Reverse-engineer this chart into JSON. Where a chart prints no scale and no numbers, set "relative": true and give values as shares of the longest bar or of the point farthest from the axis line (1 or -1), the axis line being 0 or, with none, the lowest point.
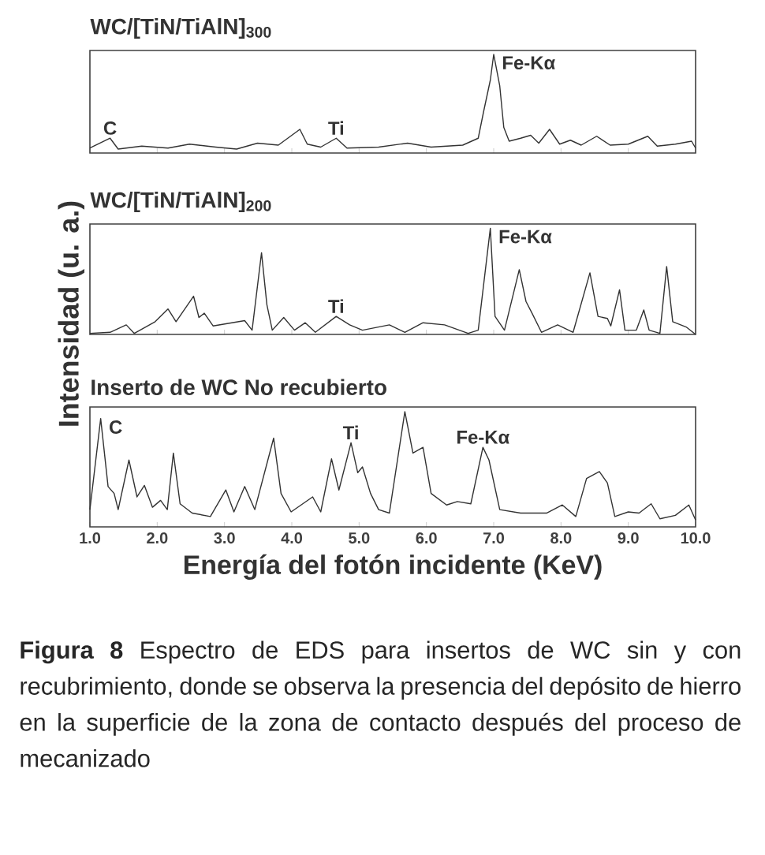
{
  "chart_data": [
    {
      "type": "line",
      "title": "WC/[TiN/TiAlN]$_{300}$",
      "relative": true,
      "tick_labels": false,
      "xlim": [
        1,
        10
      ],
      "xticks": [
        {
          "value": 1,
          "label": null
        },
        {
          "value": 2,
          "label": null
        },
        {
          "value": 3,
          "label": null
        },
        {
          "value": 4,
          "label": null
        },
        {
          "value": 5,
          "label": null
        },
        {
          "value": 6,
          "label": null
        },
        {
          "value": 7,
          "label": null
        },
        {
          "value": 8,
          "label": null
        },
        {
          "value": 9,
          "label": null
        },
        {
          "value": 10,
          "label": null
        }
      ],
      "x": [
        1.0,
        1.3,
        1.42,
        1.77,
        2.16,
        2.48,
        2.87,
        3.18,
        3.49,
        3.8,
        4.12,
        4.23,
        4.43,
        4.66,
        4.82,
        5.29,
        5.72,
        6.07,
        6.54,
        6.77,
        6.85,
        6.95,
        7.0,
        7.09,
        7.15,
        7.23,
        7.4,
        7.55,
        7.67,
        7.83,
        7.98,
        8.14,
        8.3,
        8.53,
        8.73,
        9.0,
        9.29,
        9.43,
        9.7,
        9.94,
        10.0
      ],
      "series": [
        {
          "color": "#333333",
          "values": [
            0.05,
            0.15,
            0.04,
            0.07,
            0.05,
            0.09,
            0.06,
            0.04,
            0.1,
            0.08,
            0.24,
            0.09,
            0.06,
            0.15,
            0.05,
            0.06,
            0.1,
            0.06,
            0.08,
            0.15,
            0.42,
            0.74,
            1.0,
            0.68,
            0.26,
            0.12,
            0.15,
            0.18,
            0.1,
            0.24,
            0.09,
            0.13,
            0.08,
            0.17,
            0.08,
            0.09,
            0.17,
            0.07,
            0.09,
            0.12,
            0.05
          ]
        }
      ],
      "annotations": [
        {
          "text": "C",
          "x": 1.3,
          "y": 0.15
        },
        {
          "text": "Ti",
          "x": 4.66,
          "y": 0.15
        },
        {
          "text": "Fe-Kα",
          "x": 7.0,
          "y": 1.0
        }
      ]
    },
    {
      "type": "line",
      "title": "WC/[TiN/TiAlN]$_{200}$",
      "ylabel": "Intensidad (u. a.)",
      "relative": true,
      "tick_labels": false,
      "xlim": [
        1,
        10
      ],
      "xticks": [
        {
          "value": 1,
          "label": null
        },
        {
          "value": 2,
          "label": null
        },
        {
          "value": 3,
          "label": null
        },
        {
          "value": 4,
          "label": null
        },
        {
          "value": 5,
          "label": null
        },
        {
          "value": 6,
          "label": null
        },
        {
          "value": 7,
          "label": null
        },
        {
          "value": 8,
          "label": null
        },
        {
          "value": 9,
          "label": null
        },
        {
          "value": 10,
          "label": null
        }
      ],
      "x": [
        1.0,
        1.3,
        1.54,
        1.66,
        1.97,
        2.16,
        2.28,
        2.54,
        2.62,
        2.7,
        2.83,
        3.3,
        3.41,
        3.55,
        3.63,
        3.71,
        3.88,
        4.04,
        4.2,
        4.35,
        4.66,
        4.86,
        5.05,
        5.45,
        5.68,
        5.95,
        6.27,
        6.62,
        6.77,
        6.95,
        7.02,
        7.16,
        7.38,
        7.48,
        7.57,
        7.71,
        7.95,
        8.18,
        8.43,
        8.55,
        8.69,
        8.74,
        8.87,
        8.95,
        9.12,
        9.23,
        9.31,
        9.47,
        9.57,
        9.66,
        9.86,
        10.0
      ],
      "series": [
        {
          "color": "#333333",
          "values": [
            0.01,
            0.02,
            0.09,
            0.01,
            0.12,
            0.24,
            0.12,
            0.36,
            0.16,
            0.2,
            0.08,
            0.13,
            0.04,
            0.77,
            0.28,
            0.04,
            0.16,
            0.04,
            0.11,
            0.02,
            0.17,
            0.09,
            0.04,
            0.09,
            0.02,
            0.11,
            0.09,
            0.01,
            0.04,
            1.0,
            0.17,
            0.04,
            0.61,
            0.31,
            0.2,
            0.02,
            0.09,
            0.02,
            0.58,
            0.17,
            0.15,
            0.08,
            0.42,
            0.04,
            0.04,
            0.23,
            0.04,
            0.01,
            0.64,
            0.12,
            0.07,
            0.0
          ]
        }
      ],
      "annotations": [
        {
          "text": "Ti",
          "x": 4.66,
          "y": 0.17
        },
        {
          "text": "Fe-Kα",
          "x": 6.95,
          "y": 1.0
        }
      ]
    },
    {
      "type": "line",
      "title": "Inserto de **WC** No recubierto",
      "xlabel": "Energía del fotón incidente (KeV)",
      "relative": true,
      "tick_labels": "x",
      "xlim": [
        1,
        10
      ],
      "xticks": [
        {
          "value": 1,
          "label": "1.0"
        },
        {
          "value": 2,
          "label": "2.0"
        },
        {
          "value": 3,
          "label": "3.0"
        },
        {
          "value": 4,
          "label": "4.0"
        },
        {
          "value": 5,
          "label": "5.0"
        },
        {
          "value": 6,
          "label": "6.0"
        },
        {
          "value": 7,
          "label": "7.0"
        },
        {
          "value": 8,
          "label": "8.0"
        },
        {
          "value": 9,
          "label": "9.0"
        },
        {
          "value": 10,
          "label": "10.0"
        }
      ],
      "x": [
        1.0,
        1.16,
        1.27,
        1.36,
        1.42,
        1.58,
        1.7,
        1.81,
        1.93,
        2.05,
        2.15,
        2.24,
        2.34,
        2.52,
        2.79,
        3.02,
        3.14,
        3.3,
        3.45,
        3.73,
        3.84,
        3.99,
        4.31,
        4.43,
        4.59,
        4.7,
        4.88,
        4.98,
        5.05,
        5.17,
        5.29,
        5.45,
        5.68,
        5.8,
        5.95,
        6.07,
        6.3,
        6.46,
        6.66,
        6.84,
        6.93,
        7.09,
        7.4,
        7.79,
        8.02,
        8.22,
        8.38,
        8.57,
        8.69,
        8.8,
        9.0,
        9.16,
        9.34,
        9.47,
        9.7,
        9.9,
        10.0
      ],
      "series": [
        {
          "color": "#333333",
          "values": [
            0.15,
            0.94,
            0.35,
            0.29,
            0.15,
            0.58,
            0.26,
            0.36,
            0.17,
            0.23,
            0.15,
            0.64,
            0.2,
            0.12,
            0.09,
            0.32,
            0.13,
            0.35,
            0.15,
            0.77,
            0.29,
            0.13,
            0.26,
            0.13,
            0.59,
            0.32,
            0.73,
            0.47,
            0.52,
            0.29,
            0.15,
            0.12,
            1.0,
            0.64,
            0.69,
            0.29,
            0.19,
            0.22,
            0.2,
            0.69,
            0.58,
            0.15,
            0.12,
            0.12,
            0.19,
            0.09,
            0.42,
            0.48,
            0.38,
            0.09,
            0.13,
            0.12,
            0.2,
            0.07,
            0.1,
            0.19,
            0.06
          ]
        }
      ],
      "annotations": [
        {
          "text": "C",
          "x": 1.16,
          "y": 0.94
        },
        {
          "text": "Ti",
          "x": 4.88,
          "y": 0.73
        },
        {
          "text": "Fe-Kα",
          "x": 6.84,
          "y": 0.69
        },
        "**Figura 8** Espectro de EDS para insertos de WC sin y con recubrimiento, donde se observa la presencia del depósito de hierro en la superficie de la zona de contacto después del proceso de mecanizado"
      ]
    }
  ]
}
